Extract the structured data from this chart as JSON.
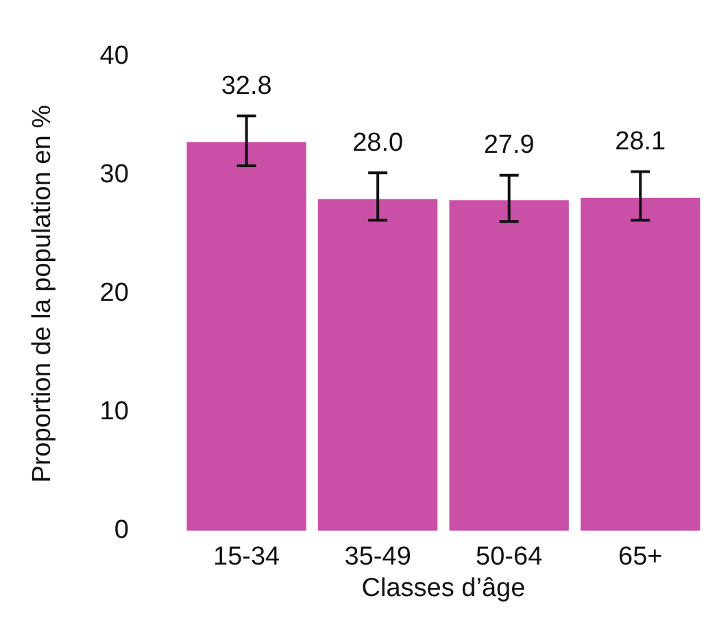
{
  "chart_data": {
    "type": "bar",
    "xlabel": "Classes d’âge",
    "ylabel": "Proportion de la population en %",
    "categories": [
      "15-34",
      "35-49",
      "50-64",
      "65+"
    ],
    "values": [
      32.8,
      28.0,
      27.9,
      28.1
    ],
    "errors": [
      [
        30.8,
        35.0
      ],
      [
        26.2,
        30.2
      ],
      [
        26.1,
        30.0
      ],
      [
        26.2,
        30.3
      ]
    ],
    "value_labels": [
      "32.8",
      "28.0",
      "27.9",
      "28.1"
    ],
    "color": "#c94fa7",
    "ylim": [
      0,
      40
    ],
    "yticks": [
      0,
      10,
      20,
      30,
      40
    ],
    "grid": false,
    "legend": false
  }
}
